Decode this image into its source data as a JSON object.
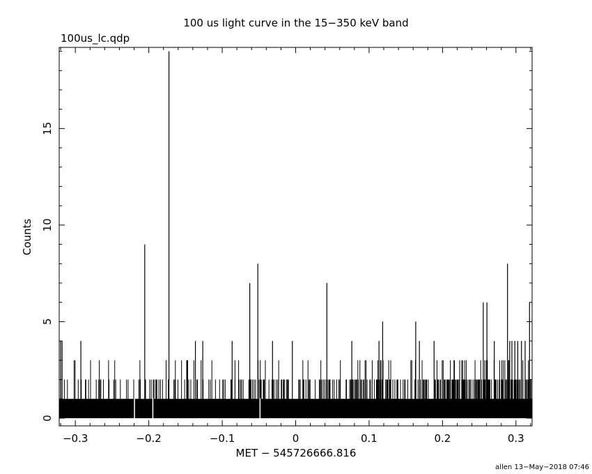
{
  "page": {
    "title": "100 us light curve in the 15−350 keV band",
    "file_label": "100us_lc.qdp",
    "footer": "allen 13−May−2018 07:46"
  },
  "chart_data": {
    "type": "bar",
    "title": "100 us light curve in the 15−350 keV band",
    "xlabel": "MET − 545726666.816",
    "ylabel": "Counts",
    "xlim": [
      -0.322,
      0.322
    ],
    "ylim": [
      -0.4,
      19.2
    ],
    "grid": false,
    "bin_width": 0.0001,
    "x_ticks": [
      -0.3,
      -0.2,
      -0.1,
      0,
      0.1,
      0.2,
      0.3
    ],
    "x_tick_labels": [
      "−0.3",
      "−0.2",
      "−0.1",
      "0",
      "0.1",
      "0.2",
      "0.3"
    ],
    "y_ticks": [
      0,
      5,
      10,
      15
    ],
    "y_tick_labels": [
      "0",
      "5",
      "10",
      "15"
    ],
    "background_level": 1,
    "level2_density": [
      {
        "x0": -0.322,
        "x1": -0.2,
        "fraction": 0.06
      },
      {
        "x0": -0.2,
        "x1": -0.1,
        "fraction": 0.07
      },
      {
        "x0": -0.1,
        "x1": 0.0,
        "fraction": 0.08
      },
      {
        "x0": 0.0,
        "x1": 0.1,
        "fraction": 0.1
      },
      {
        "x0": 0.1,
        "x1": 0.2,
        "fraction": 0.13
      },
      {
        "x0": 0.2,
        "x1": 0.322,
        "fraction": 0.17
      }
    ],
    "level3_density": [
      {
        "x0": -0.322,
        "x1": 0.0,
        "fraction": 0.012
      },
      {
        "x0": 0.0,
        "x1": 0.2,
        "fraction": 0.018
      },
      {
        "x0": 0.2,
        "x1": 0.322,
        "fraction": 0.035
      }
    ],
    "zero_bins": [
      -0.2195,
      -0.1945,
      -0.0485
    ],
    "peaks": [
      {
        "x": -0.32,
        "y": 4
      },
      {
        "x": -0.318,
        "y": 4
      },
      {
        "x": -0.2925,
        "y": 4
      },
      {
        "x": -0.2055,
        "y": 9
      },
      {
        "x": -0.1725,
        "y": 19
      },
      {
        "x": -0.1365,
        "y": 4
      },
      {
        "x": -0.1265,
        "y": 4
      },
      {
        "x": -0.0865,
        "y": 4
      },
      {
        "x": -0.0625,
        "y": 7
      },
      {
        "x": -0.0515,
        "y": 8
      },
      {
        "x": -0.0315,
        "y": 4
      },
      {
        "x": -0.0045,
        "y": 4
      },
      {
        "x": 0.0425,
        "y": 7
      },
      {
        "x": 0.0765,
        "y": 4
      },
      {
        "x": 0.1135,
        "y": 4
      },
      {
        "x": 0.1185,
        "y": 5
      },
      {
        "x": 0.1635,
        "y": 5
      },
      {
        "x": 0.1685,
        "y": 4
      },
      {
        "x": 0.1885,
        "y": 4
      },
      {
        "x": 0.2555,
        "y": 6
      },
      {
        "x": 0.2605,
        "y": 6
      },
      {
        "x": 0.2705,
        "y": 4
      },
      {
        "x": 0.2885,
        "y": 8
      },
      {
        "x": 0.2915,
        "y": 4
      },
      {
        "x": 0.2945,
        "y": 4
      },
      {
        "x": 0.2985,
        "y": 4
      },
      {
        "x": 0.3025,
        "y": 4
      },
      {
        "x": 0.3075,
        "y": 4
      },
      {
        "x": 0.3125,
        "y": 4
      },
      {
        "x": 0.3185,
        "y": 6
      }
    ]
  }
}
